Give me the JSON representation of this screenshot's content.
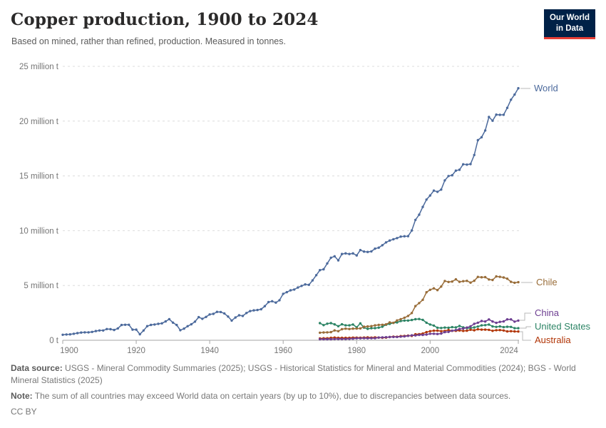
{
  "header": {
    "title": "Copper production, 1900 to 2024",
    "subtitle": "Based on mined, rather than refined, production. Measured in tonnes.",
    "logo": {
      "line1": "Our World",
      "line2": "in Data"
    }
  },
  "footer": {
    "data_source_label": "Data source:",
    "data_source": "USGS - Mineral Commodity Summaries (2025); USGS - Historical Statistics for Mineral and Material Commodities (2024); BGS - World Mineral Statistics (2025)",
    "note_label": "Note:",
    "note": "The sum of all countries may exceed World data on certain years (by up to 10%), due to discrepancies between data sources.",
    "license": "CC BY"
  },
  "chart_data": {
    "type": "line",
    "title": "Copper production, 1900 to 2024",
    "subtitle": "Based on mined, rather than refined, production. Measured in tonnes.",
    "unit": "tonnes",
    "unit_display": "million t",
    "marker": "circle",
    "grid": "horizontal dashed",
    "legend_position": "labels at right line ends",
    "xlim": [
      1900,
      2024
    ],
    "ylim_million_t": [
      0,
      25
    ],
    "x_axis": {
      "ticks": [
        1900,
        1920,
        1940,
        1960,
        1980,
        2000,
        2024
      ]
    },
    "y_axis": {
      "ticks": [
        {
          "value_million_t": 0,
          "label": "0 t"
        },
        {
          "value_million_t": 5,
          "label": "5 million t"
        },
        {
          "value_million_t": 10,
          "label": "10 million t"
        },
        {
          "value_million_t": 15,
          "label": "15 million t"
        },
        {
          "value_million_t": 20,
          "label": "20 million t"
        },
        {
          "value_million_t": 25,
          "label": "25 million t"
        }
      ]
    },
    "series": [
      {
        "name": "World",
        "color": "#4C6A9C",
        "start_year": 1900,
        "x_step": 1,
        "values_million_t": [
          0.5,
          0.53,
          0.54,
          0.59,
          0.65,
          0.7,
          0.72,
          0.72,
          0.76,
          0.84,
          0.89,
          0.89,
          1.02,
          1.01,
          0.94,
          1.08,
          1.39,
          1.41,
          1.41,
          0.97,
          0.97,
          0.55,
          0.89,
          1.29,
          1.4,
          1.44,
          1.5,
          1.54,
          1.72,
          1.93,
          1.61,
          1.39,
          0.92,
          1.06,
          1.28,
          1.46,
          1.7,
          2.11,
          1.96,
          2.13,
          2.36,
          2.41,
          2.59,
          2.58,
          2.45,
          2.16,
          1.8,
          2.08,
          2.28,
          2.22,
          2.49,
          2.66,
          2.73,
          2.76,
          2.83,
          3.11,
          3.48,
          3.56,
          3.44,
          3.65,
          4.24,
          4.39,
          4.56,
          4.63,
          4.81,
          4.96,
          5.1,
          5.06,
          5.46,
          5.94,
          6.4,
          6.48,
          7.01,
          7.53,
          7.66,
          7.29,
          7.87,
          7.93,
          7.87,
          7.93,
          7.74,
          8.23,
          8.09,
          8.06,
          8.11,
          8.36,
          8.45,
          8.67,
          8.93,
          9.1,
          9.22,
          9.32,
          9.46,
          9.49,
          9.5,
          10.02,
          10.98,
          11.46,
          12.17,
          12.84,
          13.21,
          13.66,
          13.55,
          13.75,
          14.59,
          14.99,
          15.06,
          15.48,
          15.56,
          16.06,
          16.03,
          16.08,
          16.91,
          18.26,
          18.53,
          19.15,
          20.38,
          20.04,
          20.59,
          20.57,
          20.58,
          21.21,
          21.95,
          22.42,
          23.0
        ]
      },
      {
        "name": "United States",
        "color": "#2C8465",
        "start_year": 1970,
        "x_step": 1,
        "values_million_t": [
          1.56,
          1.38,
          1.51,
          1.56,
          1.45,
          1.28,
          1.46,
          1.36,
          1.36,
          1.44,
          1.18,
          1.54,
          1.15,
          1.04,
          1.1,
          1.11,
          1.15,
          1.24,
          1.42,
          1.5,
          1.59,
          1.63,
          1.76,
          1.8,
          1.8,
          1.85,
          1.92,
          1.94,
          1.86,
          1.6,
          1.44,
          1.34,
          1.14,
          1.12,
          1.16,
          1.14,
          1.2,
          1.17,
          1.31,
          1.18,
          1.11,
          1.11,
          1.17,
          1.25,
          1.36,
          1.38,
          1.43,
          1.26,
          1.22,
          1.26,
          1.2,
          1.23,
          1.22,
          1.1,
          1.1
        ]
      },
      {
        "name": "Chile",
        "color": "#996D39",
        "start_year": 1970,
        "x_step": 1,
        "values_million_t": [
          0.69,
          0.71,
          0.72,
          0.74,
          0.9,
          0.83,
          1.01,
          1.06,
          1.03,
          1.06,
          1.07,
          1.08,
          1.24,
          1.26,
          1.29,
          1.36,
          1.4,
          1.41,
          1.45,
          1.63,
          1.59,
          1.81,
          1.93,
          2.06,
          2.22,
          2.49,
          3.12,
          3.39,
          3.69,
          4.38,
          4.6,
          4.74,
          4.58,
          4.9,
          5.41,
          5.32,
          5.36,
          5.56,
          5.33,
          5.39,
          5.42,
          5.26,
          5.43,
          5.78,
          5.75,
          5.76,
          5.55,
          5.5,
          5.83,
          5.79,
          5.73,
          5.62,
          5.33,
          5.25,
          5.3
        ]
      },
      {
        "name": "Australia",
        "color": "#B13507",
        "start_year": 1970,
        "x_step": 1,
        "values_million_t": [
          0.16,
          0.18,
          0.18,
          0.22,
          0.25,
          0.22,
          0.22,
          0.22,
          0.22,
          0.24,
          0.24,
          0.23,
          0.25,
          0.26,
          0.24,
          0.26,
          0.25,
          0.23,
          0.24,
          0.3,
          0.33,
          0.32,
          0.38,
          0.4,
          0.42,
          0.4,
          0.55,
          0.56,
          0.61,
          0.74,
          0.83,
          0.87,
          0.88,
          0.83,
          0.85,
          0.93,
          0.86,
          0.86,
          0.89,
          0.85,
          0.87,
          0.96,
          0.91,
          1.0,
          0.97,
          0.97,
          0.95,
          0.86,
          0.92,
          0.93,
          0.89,
          0.81,
          0.83,
          0.81,
          0.8
        ]
      },
      {
        "name": "China",
        "color": "#6D3E91",
        "start_year": 1970,
        "x_step": 1,
        "values_million_t": [
          0.1,
          0.1,
          0.1,
          0.1,
          0.11,
          0.12,
          0.12,
          0.12,
          0.13,
          0.15,
          0.18,
          0.18,
          0.19,
          0.18,
          0.19,
          0.19,
          0.25,
          0.26,
          0.28,
          0.29,
          0.3,
          0.3,
          0.33,
          0.35,
          0.4,
          0.45,
          0.44,
          0.49,
          0.49,
          0.52,
          0.59,
          0.59,
          0.57,
          0.61,
          0.74,
          0.76,
          0.87,
          0.93,
          1.03,
          1.07,
          1.16,
          1.27,
          1.5,
          1.6,
          1.76,
          1.71,
          1.9,
          1.71,
          1.59,
          1.68,
          1.72,
          1.91,
          1.91,
          1.7,
          1.8
        ]
      }
    ]
  }
}
